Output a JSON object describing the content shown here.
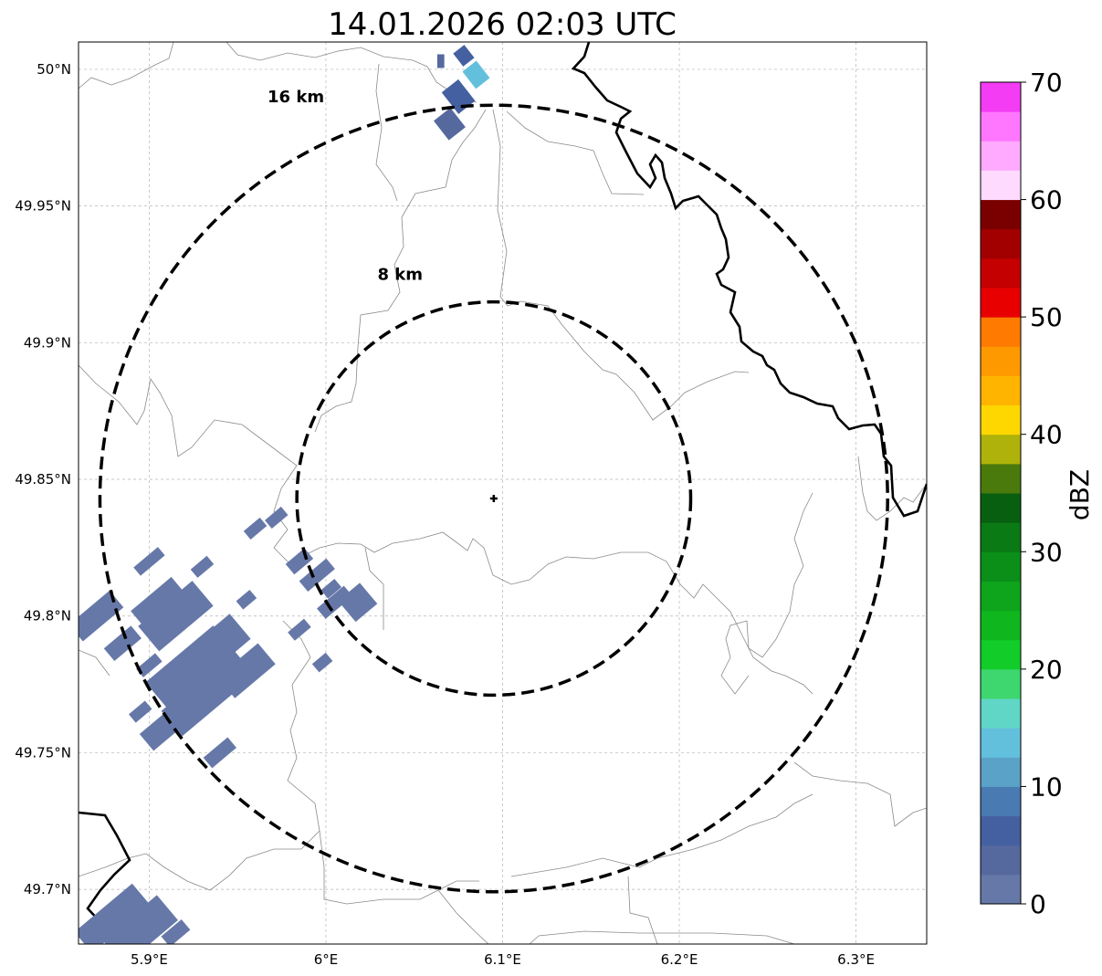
{
  "map": {
    "title": "14.01.2026 02:03 UTC",
    "lon_range": [
      5.86,
      6.34
    ],
    "lat_range": [
      49.68,
      50.01
    ],
    "lon_ticks": [
      {
        "value": 5.9,
        "label": "5.9°E"
      },
      {
        "value": 6.0,
        "label": "6°E"
      },
      {
        "value": 6.1,
        "label": "6.1°E"
      },
      {
        "value": 6.2,
        "label": "6.2°E"
      },
      {
        "value": 6.3,
        "label": "6.3°E"
      }
    ],
    "lat_ticks": [
      {
        "value": 50.0,
        "label": "50°N"
      },
      {
        "value": 49.95,
        "label": "49.95°N"
      },
      {
        "value": 49.9,
        "label": "49.9°N"
      },
      {
        "value": 49.85,
        "label": "49.85°N"
      },
      {
        "value": 49.8,
        "label": "49.8°N"
      },
      {
        "value": 49.75,
        "label": "49.75°N"
      },
      {
        "value": 49.7,
        "label": "49.7°N"
      }
    ],
    "gridlines": true,
    "center": {
      "lon": 6.095,
      "lat": 49.843
    },
    "rings": [
      {
        "radius_km": 8,
        "label": "8 km",
        "label_pos": {
          "lon": 6.042,
          "lat": 49.923
        }
      },
      {
        "radius_km": 16,
        "label": "16 km",
        "label_pos": {
          "lon": 5.983,
          "lat": 49.988
        }
      }
    ]
  },
  "colorbar": {
    "label": "dBZ",
    "min": 0,
    "max": 70,
    "step": 2.5,
    "ticks": [
      0,
      10,
      20,
      30,
      40,
      50,
      60,
      70
    ],
    "colors": [
      "#6678a8",
      "#55699f",
      "#4560a0",
      "#4a7ab2",
      "#5aa2c8",
      "#63c0dc",
      "#5fd6c6",
      "#3ed66e",
      "#12cc2a",
      "#0fb61e",
      "#0ea51c",
      "#0b8f19",
      "#0a7a14",
      "#085f10",
      "#4a7a0c",
      "#aeb20a",
      "#ffd700",
      "#ffb400",
      "#ff9900",
      "#ff7a00",
      "#e80000",
      "#c40000",
      "#a20000",
      "#7a0000",
      "#ffdaff",
      "#ffaaff",
      "#ff77ff",
      "#f43cf4"
    ]
  },
  "radar_cells": [
    {
      "lon": 6.075,
      "lat": 49.99,
      "w": 0.012,
      "h": 0.01,
      "angle": -38,
      "dbz": 7
    },
    {
      "lon": 6.085,
      "lat": 49.998,
      "w": 0.01,
      "h": 0.008,
      "angle": -38,
      "dbz": 13
    },
    {
      "lon": 6.07,
      "lat": 49.98,
      "w": 0.012,
      "h": 0.009,
      "angle": -38,
      "dbz": 4
    },
    {
      "lon": 6.078,
      "lat": 50.005,
      "w": 0.008,
      "h": 0.006,
      "angle": -38,
      "dbz": 5
    },
    {
      "lon": 6.065,
      "lat": 50.003,
      "w": 0.004,
      "h": 0.005,
      "angle": 0,
      "dbz": 4
    },
    {
      "lon": 5.915,
      "lat": 49.8,
      "w": 0.04,
      "h": 0.012,
      "angle": -40,
      "dbz": 1
    },
    {
      "lon": 5.925,
      "lat": 49.78,
      "w": 0.05,
      "h": 0.016,
      "angle": -40,
      "dbz": 1
    },
    {
      "lon": 5.93,
      "lat": 49.77,
      "w": 0.045,
      "h": 0.012,
      "angle": -40,
      "dbz": 1
    },
    {
      "lon": 5.94,
      "lat": 49.79,
      "w": 0.03,
      "h": 0.012,
      "angle": -40,
      "dbz": 1
    },
    {
      "lon": 5.955,
      "lat": 49.78,
      "w": 0.03,
      "h": 0.01,
      "angle": -40,
      "dbz": 1
    },
    {
      "lon": 5.905,
      "lat": 49.805,
      "w": 0.03,
      "h": 0.008,
      "angle": -40,
      "dbz": 1
    },
    {
      "lon": 5.91,
      "lat": 49.76,
      "w": 0.03,
      "h": 0.008,
      "angle": -40,
      "dbz": 1
    },
    {
      "lon": 5.87,
      "lat": 49.8,
      "w": 0.03,
      "h": 0.008,
      "angle": -40,
      "dbz": 1
    },
    {
      "lon": 5.885,
      "lat": 49.79,
      "w": 0.02,
      "h": 0.006,
      "angle": -40,
      "dbz": 1
    },
    {
      "lon": 5.9,
      "lat": 49.82,
      "w": 0.018,
      "h": 0.004,
      "angle": -40,
      "dbz": 1
    },
    {
      "lon": 5.93,
      "lat": 49.818,
      "w": 0.012,
      "h": 0.004,
      "angle": -40,
      "dbz": 1
    },
    {
      "lon": 5.955,
      "lat": 49.806,
      "w": 0.01,
      "h": 0.004,
      "angle": -40,
      "dbz": 1
    },
    {
      "lon": 5.94,
      "lat": 49.75,
      "w": 0.018,
      "h": 0.005,
      "angle": -40,
      "dbz": 1
    },
    {
      "lon": 5.895,
      "lat": 49.765,
      "w": 0.012,
      "h": 0.004,
      "angle": -40,
      "dbz": 1
    },
    {
      "lon": 5.9,
      "lat": 49.782,
      "w": 0.014,
      "h": 0.004,
      "angle": -40,
      "dbz": 1
    },
    {
      "lon": 5.96,
      "lat": 49.832,
      "w": 0.012,
      "h": 0.004,
      "angle": -40,
      "dbz": 1
    },
    {
      "lon": 5.972,
      "lat": 49.836,
      "w": 0.012,
      "h": 0.004,
      "angle": -40,
      "dbz": 1
    },
    {
      "lon": 5.985,
      "lat": 49.82,
      "w": 0.014,
      "h": 0.005,
      "angle": -40,
      "dbz": 1
    },
    {
      "lon": 5.995,
      "lat": 49.815,
      "w": 0.02,
      "h": 0.005,
      "angle": -40,
      "dbz": 1
    },
    {
      "lon": 6.005,
      "lat": 49.805,
      "w": 0.02,
      "h": 0.005,
      "angle": -40,
      "dbz": 1
    },
    {
      "lon": 6.018,
      "lat": 49.805,
      "w": 0.016,
      "h": 0.01,
      "angle": -40,
      "dbz": 1
    },
    {
      "lon": 5.985,
      "lat": 49.795,
      "w": 0.012,
      "h": 0.004,
      "angle": -40,
      "dbz": 1
    },
    {
      "lon": 5.998,
      "lat": 49.783,
      "w": 0.01,
      "h": 0.004,
      "angle": -40,
      "dbz": 1
    },
    {
      "lon": 6.003,
      "lat": 49.81,
      "w": 0.01,
      "h": 0.004,
      "angle": -40,
      "dbz": 1
    },
    {
      "lon": 5.88,
      "lat": 49.69,
      "w": 0.04,
      "h": 0.01,
      "angle": -40,
      "dbz": 1
    },
    {
      "lon": 5.895,
      "lat": 49.685,
      "w": 0.04,
      "h": 0.012,
      "angle": -40,
      "dbz": 1
    },
    {
      "lon": 5.915,
      "lat": 49.684,
      "w": 0.015,
      "h": 0.005,
      "angle": -40,
      "dbz": 1
    },
    {
      "lon": 5.87,
      "lat": 49.685,
      "w": 0.02,
      "h": 0.008,
      "angle": -40,
      "dbz": 1
    }
  ]
}
